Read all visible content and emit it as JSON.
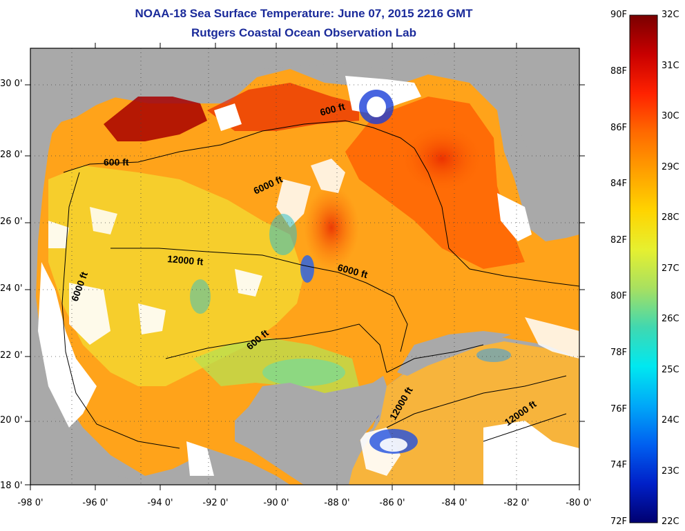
{
  "header": {
    "title": "NOAA-18 Sea Surface Temperature:  June 07, 2015 2216 GMT",
    "subtitle": "Rutgers Coastal Ocean Observation Lab"
  },
  "map": {
    "lat_labels": [
      "30 0'",
      "28 0'",
      "26 0'",
      "24 0'",
      "22 0'",
      "20 0'",
      "18 0'"
    ],
    "lon_labels": [
      "-98 0'",
      "-96 0'",
      "-94 0'",
      "-92 0'",
      "-90 0'",
      "-88 0'",
      "-86 0'",
      "-84 0'",
      "-82 0'",
      "-80 0'"
    ],
    "contour_labels": [
      "600 ft",
      "600 ft",
      "6000 ft",
      "6000 ft",
      "12000 ft",
      "6000 ft",
      "600 ft",
      "12000 ft",
      "12000 ft"
    ],
    "land_color": "#a9a9a9",
    "cloud_color": "#ffffff"
  },
  "colorbar": {
    "fahrenheit_labels": [
      "90F",
      "88F",
      "86F",
      "84F",
      "82F",
      "80F",
      "78F",
      "76F",
      "74F",
      "72F"
    ],
    "celsius_labels": [
      "32C",
      "31C",
      "30C",
      "29C",
      "28C",
      "27C",
      "26C",
      "25C",
      "24C",
      "23C",
      "22C"
    ],
    "stops": [
      "#7a0000",
      "#c80000",
      "#ff2200",
      "#ff6a00",
      "#ffa000",
      "#ffd400",
      "#e6f030",
      "#a8e060",
      "#40d8b0",
      "#00e8f0",
      "#00a8f8",
      "#0060f0",
      "#0020c8",
      "#000070"
    ]
  }
}
